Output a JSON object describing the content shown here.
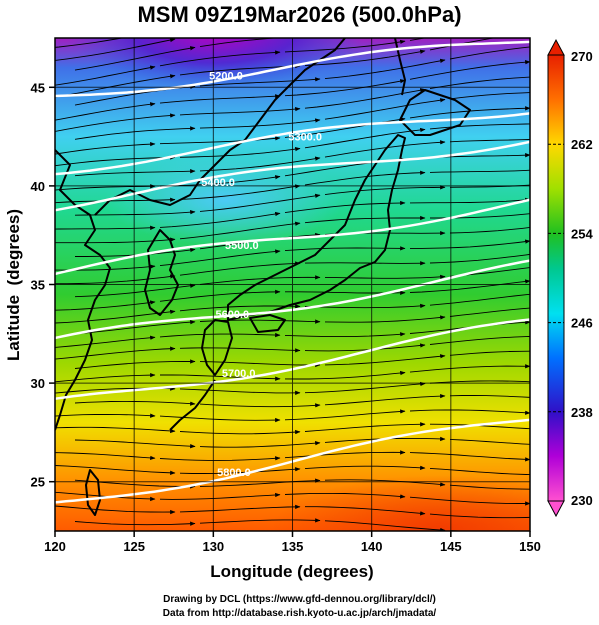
{
  "title": "MSM 09Z19Mar2026 (500.0hPa)",
  "footer": {
    "line1": "Drawing by DCL (https://www.gfd-dennou.org/library/dcl/)",
    "line2": "Data from http://database.rish.kyoto-u.ac.jp/arch/jmadata/"
  },
  "chart_data": {
    "type": "heatmap",
    "xlabel": "Longitude (degrees)",
    "ylabel": "Latitude  (degrees)",
    "xlim": [
      120,
      150
    ],
    "ylim": [
      22.5,
      47.5
    ],
    "x_ticks": [
      "120",
      "125",
      "130",
      "135",
      "140",
      "145",
      "150"
    ],
    "y_ticks": [
      "25",
      "30",
      "35",
      "40",
      "45"
    ],
    "grid": true,
    "colorbar": {
      "min": 230,
      "max": 270,
      "ticks": [
        "230",
        "238",
        "246",
        "254",
        "262",
        "270"
      ],
      "colors": [
        "#ff4fd0",
        "#b400d8",
        "#3010c8",
        "#0080ff",
        "#00e0e8",
        "#00c080",
        "#40cc20",
        "#a8e000",
        "#ffd400",
        "#ff6a00",
        "#e82000"
      ]
    },
    "contours": [
      {
        "label": "5200.0",
        "lon": 130.8,
        "lat": 45.6
      },
      {
        "label": "5300.0",
        "lon": 135.8,
        "lat": 42.5
      },
      {
        "label": "5400.0",
        "lon": 130.3,
        "lat": 40.2
      },
      {
        "label": "5500.0",
        "lon": 131.8,
        "lat": 37.0
      },
      {
        "label": "5600.0",
        "lon": 131.2,
        "lat": 33.5
      },
      {
        "label": "5700.0",
        "lon": 131.6,
        "lat": 30.5
      },
      {
        "label": "5800.0",
        "lon": 131.3,
        "lat": 25.5
      }
    ]
  }
}
